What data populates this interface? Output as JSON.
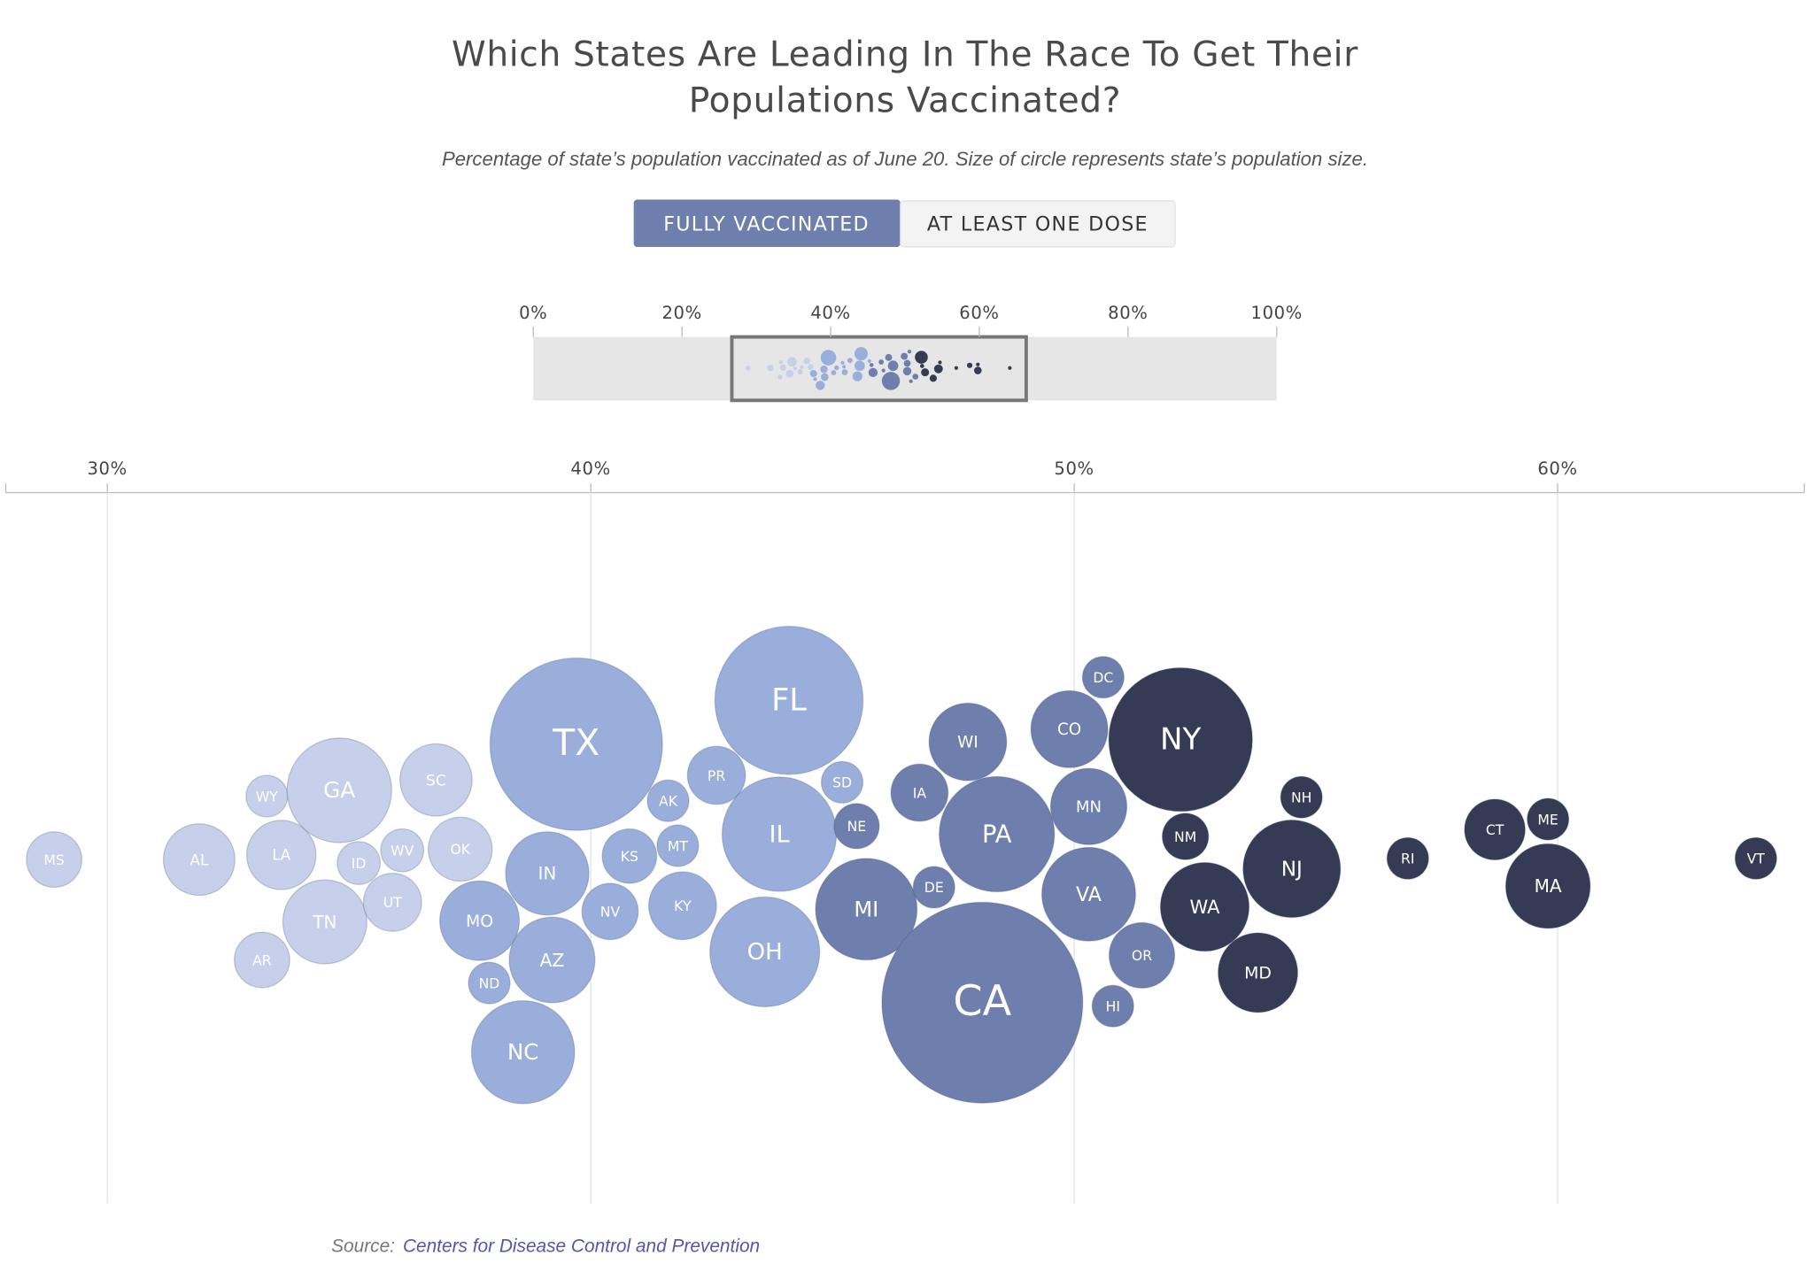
{
  "chart_data": {
    "type": "bubble",
    "title": [
      "Which States Are Leading In The Race To Get Their",
      "Populations Vaccinated?"
    ],
    "subtitle": "Percentage of state’s population vaccinated as of June 20. Size of circle represents state’s population size.",
    "xlim": [
      27.9,
      65.1
    ],
    "xticks": [
      {
        "value": 30,
        "label": "30%"
      },
      {
        "value": 40,
        "label": "40%"
      },
      {
        "value": 50,
        "label": "50%"
      },
      {
        "value": 60,
        "label": "60%"
      }
    ],
    "overview_xlim": [
      0,
      100
    ],
    "overview_xticks": [
      {
        "value": 0,
        "label": "0%"
      },
      {
        "value": 20,
        "label": "20%"
      },
      {
        "value": 40,
        "label": "40%"
      },
      {
        "value": 60,
        "label": "60%"
      },
      {
        "value": 80,
        "label": "80%"
      },
      {
        "value": 100,
        "label": "100%"
      }
    ],
    "grid": true,
    "points": [
      {
        "label": "MS",
        "value": 28.9,
        "size": 3.0,
        "color": "#c6d0ea"
      },
      {
        "label": "AL",
        "value": 31.9,
        "size": 5.0,
        "color": "#c6d0ea"
      },
      {
        "label": "AR",
        "value": 33.2,
        "size": 3.0,
        "color": "#c6d0ea"
      },
      {
        "label": "WY",
        "value": 33.3,
        "size": 0.6,
        "color": "#c6d0ea"
      },
      {
        "label": "LA",
        "value": 33.6,
        "size": 4.7,
        "color": "#c6d0ea"
      },
      {
        "label": "GA",
        "value": 34.8,
        "size": 10.7,
        "color": "#c6d0ea"
      },
      {
        "label": "TN",
        "value": 34.5,
        "size": 6.9,
        "color": "#c6d0ea"
      },
      {
        "label": "ID",
        "value": 35.2,
        "size": 1.8,
        "color": "#c6d0ea"
      },
      {
        "label": "UT",
        "value": 35.9,
        "size": 3.3,
        "color": "#c6d0ea"
      },
      {
        "label": "WV",
        "value": 36.1,
        "size": 1.8,
        "color": "#c6d0ea"
      },
      {
        "label": "SC",
        "value": 36.8,
        "size": 5.1,
        "color": "#c6d0ea"
      },
      {
        "label": "OK",
        "value": 37.3,
        "size": 4.0,
        "color": "#c6d0ea"
      },
      {
        "label": "MO",
        "value": 37.7,
        "size": 6.2,
        "color": "#9aaedb"
      },
      {
        "label": "ND",
        "value": 37.9,
        "size": 0.8,
        "color": "#9aaedb"
      },
      {
        "label": "IN",
        "value": 39.1,
        "size": 6.8,
        "color": "#9aaedb"
      },
      {
        "label": "NC",
        "value": 38.6,
        "size": 10.4,
        "color": "#9aaedb"
      },
      {
        "label": "AZ",
        "value": 39.2,
        "size": 7.2,
        "color": "#9aaedb"
      },
      {
        "label": "TX",
        "value": 39.7,
        "size": 29.1,
        "color": "#9aaedb"
      },
      {
        "label": "NV",
        "value": 40.4,
        "size": 3.1,
        "color": "#9aaedb"
      },
      {
        "label": "KS",
        "value": 40.8,
        "size": 2.9,
        "color": "#9aaedb"
      },
      {
        "label": "AK",
        "value": 41.6,
        "size": 0.7,
        "color": "#9aaedb"
      },
      {
        "label": "MT",
        "value": 41.8,
        "size": 1.1,
        "color": "#9aaedb"
      },
      {
        "label": "KY",
        "value": 41.9,
        "size": 4.5,
        "color": "#9aaedb"
      },
      {
        "label": "PR",
        "value": 42.6,
        "size": 3.3,
        "color": "#9aaedb"
      },
      {
        "label": "OH",
        "value": 43.6,
        "size": 11.8,
        "color": "#9aaedb"
      },
      {
        "label": "IL",
        "value": 43.9,
        "size": 12.8,
        "color": "#9aaedb"
      },
      {
        "label": "FL",
        "value": 44.1,
        "size": 21.5,
        "color": "#9aaedb"
      },
      {
        "label": "SD",
        "value": 45.2,
        "size": 0.9,
        "color": "#9aaedb"
      },
      {
        "label": "NE",
        "value": 45.5,
        "size": 2.0,
        "color": "#6e7fad"
      },
      {
        "label": "MI",
        "value": 45.7,
        "size": 10.1,
        "color": "#6e7fad"
      },
      {
        "label": "IA",
        "value": 46.8,
        "size": 3.2,
        "color": "#6e7fad"
      },
      {
        "label": "DE",
        "value": 47.1,
        "size": 1.0,
        "color": "#6e7fad"
      },
      {
        "label": "WI",
        "value": 47.8,
        "size": 5.9,
        "color": "#6e7fad"
      },
      {
        "label": "CA",
        "value": 48.1,
        "size": 39.5,
        "color": "#6e7fad"
      },
      {
        "label": "PA",
        "value": 48.4,
        "size": 13.0,
        "color": "#6e7fad"
      },
      {
        "label": "VA",
        "value": 50.3,
        "size": 8.6,
        "color": "#6e7fad"
      },
      {
        "label": "CO",
        "value": 49.9,
        "size": 5.8,
        "color": "#6e7fad"
      },
      {
        "label": "MN",
        "value": 50.3,
        "size": 5.7,
        "color": "#6e7fad"
      },
      {
        "label": "DC",
        "value": 50.6,
        "size": 0.7,
        "color": "#6e7fad"
      },
      {
        "label": "HI",
        "value": 50.8,
        "size": 1.5,
        "color": "#6e7fad"
      },
      {
        "label": "OR",
        "value": 51.4,
        "size": 4.2,
        "color": "#6e7fad"
      },
      {
        "label": "NY",
        "value": 52.2,
        "size": 20.2,
        "color": "#353b55"
      },
      {
        "label": "NM",
        "value": 52.3,
        "size": 2.1,
        "color": "#353b55"
      },
      {
        "label": "WA",
        "value": 52.7,
        "size": 7.7,
        "color": "#353b55"
      },
      {
        "label": "MD",
        "value": 53.8,
        "size": 6.2,
        "color": "#353b55"
      },
      {
        "label": "NJ",
        "value": 54.5,
        "size": 9.3,
        "color": "#353b55"
      },
      {
        "label": "NH",
        "value": 54.7,
        "size": 1.4,
        "color": "#353b55"
      },
      {
        "label": "RI",
        "value": 56.9,
        "size": 1.1,
        "color": "#353b55"
      },
      {
        "label": "CT",
        "value": 58.7,
        "size": 3.6,
        "color": "#353b55"
      },
      {
        "label": "MA",
        "value": 59.8,
        "size": 7.0,
        "color": "#353b55"
      },
      {
        "label": "ME",
        "value": 59.8,
        "size": 1.4,
        "color": "#353b55"
      },
      {
        "label": "VT",
        "value": 64.1,
        "size": 0.6,
        "color": "#353b55"
      }
    ]
  },
  "controls": {
    "active": "FULLY VACCINATED",
    "inactive": "AT LEAST ONE DOSE"
  },
  "source": {
    "label": "Source:",
    "link": "Centers for Disease Control and Prevention"
  }
}
